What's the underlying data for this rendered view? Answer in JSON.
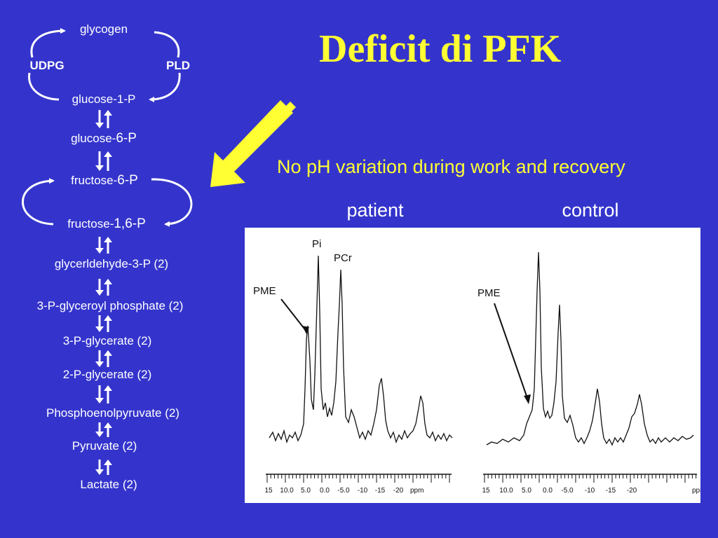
{
  "title": "Deficit di PFK",
  "subtitle": "No pH variation during work and recovery",
  "columns": {
    "patient": "patient",
    "control": "control"
  },
  "pathway": {
    "glycogen": "glycogen",
    "udpg": "UDPG",
    "pld": "PLD",
    "glucose1p": "glucose-1-P",
    "glucose6p_prefix": "glucose-",
    "glucose6p_suffix": "6-P",
    "fructose6p_prefix": "fructose-",
    "fructose6p_suffix": "6-P",
    "fructose16p_prefix": "fructose-",
    "fructose16p_suffix": "1,6-P",
    "steps": [
      "glycerldehyde-3-P (2)",
      "3-P-glyceroyl phosphate (2)",
      "3-P-glycerate (2)",
      "2-P-glycerate (2)",
      "Phosphoenolpyruvate (2)",
      "Pyruvate (2)",
      "Lactate (2)"
    ]
  },
  "spectra": {
    "peak_labels": {
      "pi": "Pi",
      "pcr": "PCr",
      "pme_patient": "PME",
      "pme_control": "PME"
    },
    "axis_ticks": [
      "15",
      "10.0",
      "5.0",
      "0.0",
      "-5.0",
      "-10",
      "-15",
      "-20"
    ],
    "unit": "ppm"
  },
  "colors": {
    "background": "#3434cc",
    "title": "#ffff33",
    "arrow": "#ffff33",
    "text": "#ffffff"
  }
}
